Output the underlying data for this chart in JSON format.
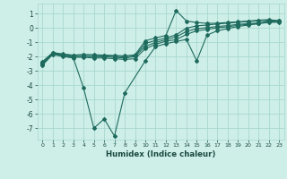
{
  "xlabel": "Humidex (Indice chaleur)",
  "bg_color": "#ceeee8",
  "grid_color": "#a8d8d0",
  "line_color": "#1e6b5e",
  "xlim": [
    -0.5,
    23.5
  ],
  "ylim": [
    -7.8,
    1.7
  ],
  "x": [
    0,
    1,
    2,
    3,
    4,
    5,
    6,
    7,
    8,
    9,
    10,
    11,
    12,
    13,
    14,
    15,
    16,
    17,
    18,
    19,
    20,
    21,
    22,
    23
  ],
  "lines": [
    [
      -2.6,
      -1.85,
      -2.0,
      -2.1,
      -4.2,
      -7.0,
      -6.35,
      -7.55,
      -4.55,
      null,
      -2.3,
      -1.3,
      -1.1,
      -0.95,
      -0.8,
      -2.3,
      -0.5,
      -0.2,
      -0.05,
      0.1,
      0.2,
      0.3,
      0.52,
      0.42
    ],
    [
      -2.55,
      -1.82,
      -1.95,
      -2.05,
      -2.05,
      -2.1,
      -2.1,
      -2.15,
      -2.2,
      -2.15,
      -1.45,
      -1.15,
      -0.92,
      -0.82,
      -0.45,
      -0.2,
      -0.1,
      0.0,
      0.08,
      0.18,
      0.25,
      0.3,
      0.38,
      0.4
    ],
    [
      -2.48,
      -1.78,
      -1.9,
      -2.0,
      -2.0,
      -2.0,
      -2.02,
      -2.05,
      -2.1,
      -2.0,
      -1.28,
      -1.02,
      -0.82,
      -0.62,
      -0.25,
      -0.05,
      0.02,
      0.1,
      0.16,
      0.25,
      0.3,
      0.35,
      0.42,
      0.45
    ],
    [
      -2.42,
      -1.74,
      -1.85,
      -1.93,
      -1.92,
      -1.93,
      -1.95,
      -1.98,
      -2.02,
      -1.95,
      -1.08,
      -0.88,
      -0.7,
      -0.48,
      -0.02,
      0.15,
      0.2,
      0.28,
      0.33,
      0.4,
      0.44,
      0.5,
      0.54,
      0.5
    ],
    [
      -2.35,
      -1.72,
      -1.82,
      -1.9,
      -1.85,
      -1.87,
      -1.9,
      -1.92,
      -1.95,
      -1.88,
      -0.9,
      -0.7,
      -0.52,
      1.22,
      0.48,
      0.38,
      0.32,
      0.33,
      0.38,
      0.43,
      0.48,
      0.54,
      0.58,
      0.5
    ]
  ],
  "yticks": [
    -7,
    -6,
    -5,
    -4,
    -3,
    -2,
    -1,
    0,
    1
  ],
  "xticks": [
    0,
    1,
    2,
    3,
    4,
    5,
    6,
    7,
    8,
    9,
    10,
    11,
    12,
    13,
    14,
    15,
    16,
    17,
    18,
    19,
    20,
    21,
    22,
    23
  ]
}
